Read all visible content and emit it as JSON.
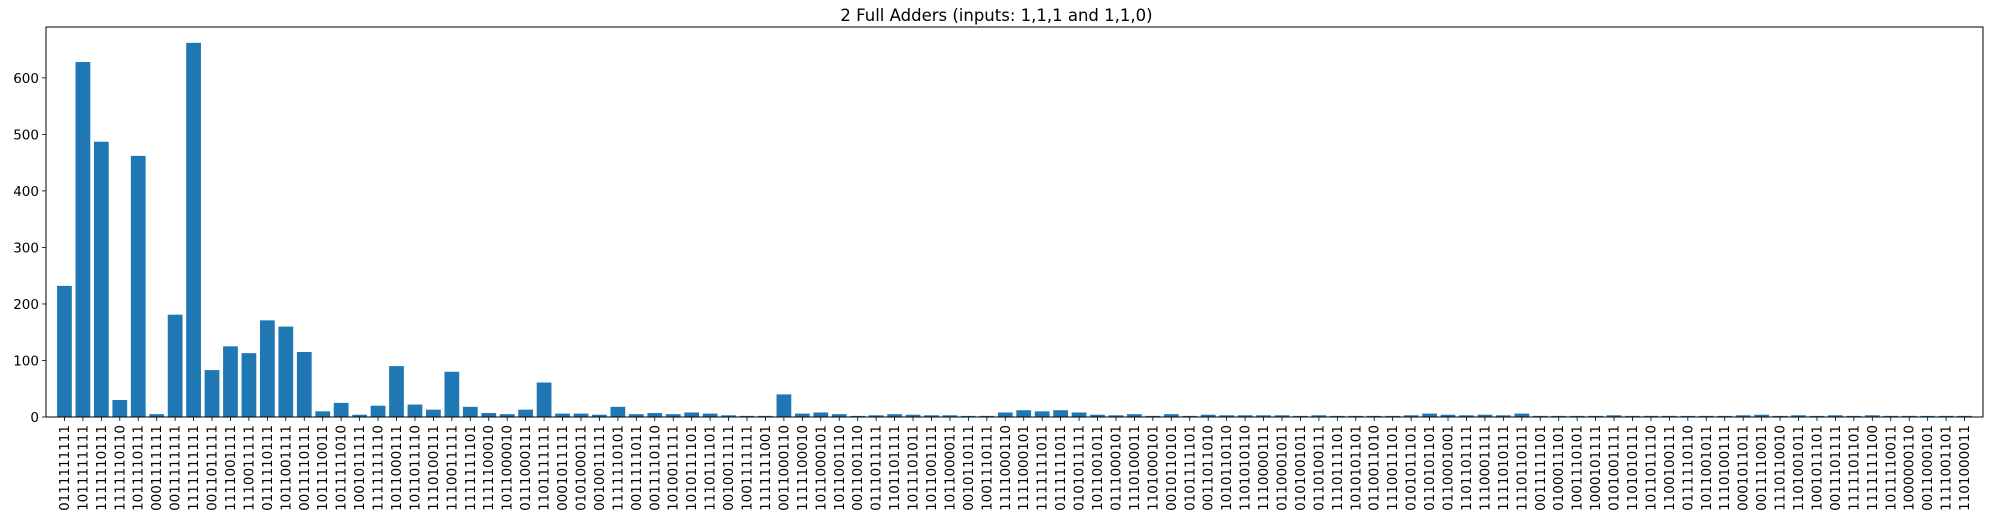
{
  "chart_data": {
    "type": "bar",
    "title": "2 Full Adders (inputs: 1,1,1 and 1,1,0)",
    "xlabel": "",
    "ylabel": "",
    "ylim": [
      0,
      690
    ],
    "yticks": [
      0,
      100,
      200,
      300,
      400,
      500,
      600
    ],
    "grid": false,
    "bar_color": "#1f77b4",
    "categories": [
      "0111111111",
      "1011111111",
      "1111110111",
      "1111110110",
      "1011110111",
      "0001111111",
      "0011111111",
      "1111111111",
      "0011011111",
      "1111001111",
      "1110011111",
      "0111110111",
      "1011001111",
      "0011110111",
      "1011110011",
      "1011111010",
      "1001011111",
      "1111111110",
      "1011000111",
      "1011011110",
      "1110100111",
      "1110011111",
      "1111111101",
      "1111100010",
      "1011000010",
      "0111000111",
      "1101111111",
      "0001011111",
      "0101000111",
      "0010011111",
      "1111110101",
      "0011111011",
      "0011110110",
      "1010011111",
      "1010111101",
      "1110111101",
      "0010011111",
      "1001111111",
      "1111111001",
      "0011000110",
      "1111100010",
      "1011000101",
      "1011001110",
      "0011001110",
      "0111011111",
      "1101101111",
      "1011101011",
      "1011001111",
      "1011000011",
      "0010110111",
      "1001110111",
      "1111000110",
      "1111000101",
      "1111111011",
      "0111111011",
      "0101011111",
      "1011001011",
      "0111000101",
      "1110100011",
      "1101000101",
      "0010110101",
      "0101111101",
      "0011011010",
      "1010110110",
      "1101010110",
      "1110000111",
      "0110001011",
      "0101001011",
      "0110100111",
      "1110111101",
      "1010101101",
      "0110011010",
      "1110011101",
      "0101011101",
      "0110101101",
      "0110001001",
      "1101101111",
      "1110001111",
      "1111010111",
      "1110110111",
      "0011111101",
      "0100011101",
      "1001110101",
      "1000101111",
      "0101001111",
      "1101010111",
      "1011011110",
      "1100100111",
      "0111110110",
      "1011001011",
      "1110100111",
      "0001011011",
      "0011110011",
      "1110110010",
      "1101001011",
      "1001011101",
      "0011101111",
      "1111101101",
      "1111111100",
      "1011110011",
      "1000000110",
      "0011000101",
      "1111001101",
      "1101000011"
    ],
    "values": [
      232,
      628,
      487,
      30,
      462,
      5,
      181,
      662,
      83,
      125,
      113,
      171,
      160,
      115,
      10,
      25,
      4,
      20,
      90,
      22,
      13,
      80,
      18,
      7,
      5,
      13,
      61,
      6,
      6,
      4,
      18,
      5,
      7,
      5,
      8,
      6,
      3,
      2,
      2,
      40,
      6,
      8,
      5,
      2,
      3,
      5,
      4,
      3,
      3,
      2,
      2,
      8,
      12,
      10,
      12,
      8,
      4,
      3,
      5,
      2,
      5,
      2,
      4,
      3,
      3,
      3,
      3,
      2,
      3,
      2,
      2,
      2,
      2,
      3,
      6,
      4,
      3,
      4,
      3,
      6,
      2,
      2,
      2,
      2,
      3,
      2,
      2,
      2,
      2,
      2,
      2,
      3,
      4,
      2,
      3,
      2,
      3,
      2,
      3,
      2,
      2,
      2,
      2,
      2
    ]
  }
}
